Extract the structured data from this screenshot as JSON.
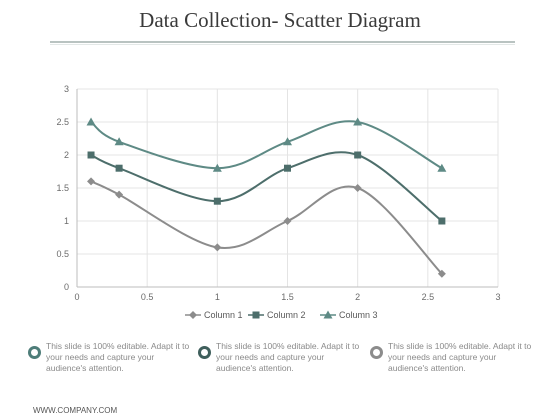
{
  "title": "Data Collection- Scatter Diagram",
  "chart_data": {
    "type": "scatter",
    "title": "",
    "xlabel": "",
    "ylabel": "",
    "xlim": [
      0,
      3
    ],
    "ylim": [
      0,
      3
    ],
    "x_ticks": [
      "0",
      "0.5",
      "1",
      "1.5",
      "2",
      "2.5",
      "3"
    ],
    "y_ticks": [
      "0",
      "0.5",
      "1",
      "1.5",
      "2",
      "2.5",
      "3"
    ],
    "grid": true,
    "legend_position": "bottom",
    "series": [
      {
        "name": "Column 1",
        "marker": "diamond",
        "color": "#8c8c8c",
        "x": [
          0.1,
          0.3,
          1.0,
          1.5,
          2.0,
          2.6
        ],
        "y": [
          1.6,
          1.4,
          0.6,
          1.0,
          1.5,
          0.2
        ]
      },
      {
        "name": "Column 2",
        "marker": "square",
        "color": "#4d6e6b",
        "x": [
          0.1,
          0.3,
          1.0,
          1.5,
          2.0,
          2.6
        ],
        "y": [
          2.0,
          1.8,
          1.3,
          1.8,
          2.0,
          1.0
        ]
      },
      {
        "name": "Column 3",
        "marker": "triangle",
        "color": "#5e8a85",
        "x": [
          0.1,
          0.3,
          1.0,
          1.5,
          2.0,
          2.6
        ],
        "y": [
          2.5,
          2.2,
          1.8,
          2.2,
          2.5,
          1.8
        ]
      }
    ]
  },
  "bullets": [
    {
      "text": "This slide is 100% editable. Adapt it to your needs and capture your audience's attention.",
      "color": "#4e7d79"
    },
    {
      "text": "This slide is 100% editable. Adapt it to your needs and capture your audience's attention.",
      "color": "#3f5f5c"
    },
    {
      "text": "This slide is 100% editable. Adapt it to your needs and capture your audience's attention.",
      "color": "#8c8c8c"
    }
  ],
  "footer": "WWW.COMPANY.COM"
}
